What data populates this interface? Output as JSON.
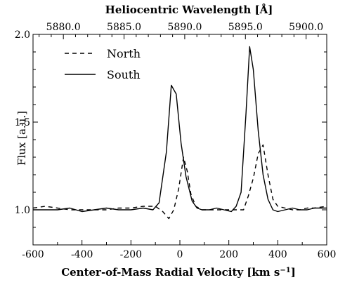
{
  "chart_data": {
    "type": "line",
    "title": "",
    "xlabel": "Center-of-Mass Radial Velocity [km s",
    "xlabel_superscript": "−1",
    "xlabel_close": "]",
    "x2label": "Heliocentric Wavelength [Å]",
    "ylabel": "Flux [a.u.]",
    "xlim": [
      -600,
      600
    ],
    "ylim": [
      0.8,
      2.0
    ],
    "x2lim": [
      5877.5,
      5901.7
    ],
    "xticks": [
      -600,
      -400,
      -200,
      0,
      200,
      400,
      600
    ],
    "xtick_labels": [
      "-600",
      "-400",
      "-200",
      "0",
      "200",
      "400",
      "600"
    ],
    "yticks": [
      1.0,
      1.5,
      2.0
    ],
    "ytick_labels": [
      "1.0",
      "1.5",
      "2.0"
    ],
    "x2ticks": [
      5880.0,
      5885.0,
      5890.0,
      5895.0,
      5900.0
    ],
    "x2tick_labels": [
      "5880.0",
      "5885.0",
      "5890.0",
      "5895.0",
      "5900.0"
    ],
    "legend_position": "top-left",
    "grid": false,
    "series": [
      {
        "name": "North",
        "style": "dashed",
        "color": "#000000",
        "x": [
          -600,
          -550,
          -500,
          -450,
          -400,
          -350,
          -300,
          -250,
          -200,
          -150,
          -100,
          -70,
          -45,
          -25,
          -5,
          15,
          30,
          45,
          65,
          90,
          120,
          150,
          180,
          210,
          240,
          260,
          280,
          300,
          320,
          340,
          360,
          380,
          400,
          430,
          460,
          490,
          520,
          550,
          600
        ],
        "y": [
          1.01,
          1.02,
          1.01,
          1.0,
          1.0,
          1.0,
          1.0,
          1.01,
          1.01,
          1.02,
          1.02,
          0.99,
          0.95,
          1.0,
          1.12,
          1.3,
          1.22,
          1.09,
          1.02,
          1.0,
          1.0,
          1.0,
          1.0,
          1.0,
          1.0,
          1.0,
          1.08,
          1.18,
          1.32,
          1.37,
          1.2,
          1.06,
          1.02,
          1.01,
          1.0,
          1.0,
          1.01,
          1.01,
          1.02
        ]
      },
      {
        "name": "South",
        "style": "solid",
        "color": "#000000",
        "x": [
          -600,
          -550,
          -500,
          -450,
          -400,
          -350,
          -300,
          -250,
          -200,
          -150,
          -110,
          -85,
          -55,
          -35,
          -15,
          5,
          25,
          50,
          70,
          90,
          120,
          150,
          180,
          210,
          230,
          250,
          270,
          285,
          300,
          320,
          340,
          360,
          380,
          400,
          430,
          460,
          490,
          520,
          550,
          600
        ],
        "y": [
          1.0,
          1.0,
          1.0,
          1.01,
          0.99,
          1.0,
          1.01,
          1.0,
          1.0,
          1.01,
          1.0,
          1.04,
          1.33,
          1.71,
          1.66,
          1.38,
          1.19,
          1.05,
          1.01,
          1.0,
          1.0,
          1.01,
          1.0,
          0.99,
          1.02,
          1.1,
          1.55,
          1.93,
          1.8,
          1.45,
          1.2,
          1.06,
          1.0,
          0.99,
          1.0,
          1.01,
          1.0,
          1.0,
          1.01,
          1.01
        ]
      }
    ]
  },
  "legend": {
    "north_label": "North",
    "south_label": "South"
  }
}
